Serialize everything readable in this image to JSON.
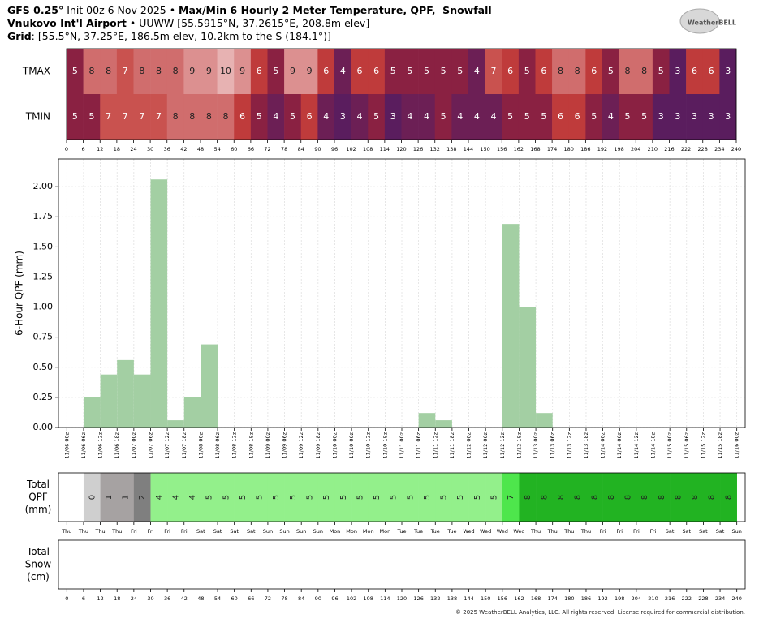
{
  "header": {
    "line1": [
      {
        "text": "GFS 0.25°",
        "bold": true
      },
      {
        "text": " Init 00z 6 Nov 2025 • ",
        "bold": false
      },
      {
        "text": "Max/Min 6 Hourly 2 Meter Temperature, QPF,  Snowfall",
        "bold": true
      }
    ],
    "line2": [
      {
        "text": "Vnukovo Int'l Airport",
        "bold": true
      },
      {
        "text": " • UUWW [55.5915°N, 37.2615°E, 208.8m elev]",
        "bold": false
      }
    ],
    "line3": [
      {
        "text": "Grid",
        "bold": true
      },
      {
        "text": ": [55.5°N, 37.25°E, 186.5m elev, 10.2km to the S (184.1°)]",
        "bold": false
      }
    ]
  },
  "logo": "WeatherBELL",
  "footer": "© 2025 WeatherBELL Analytics, LLC. All rights reserved. License required for commercial distribution.",
  "chart_data": [
    {
      "type": "heatmap",
      "rows": [
        "TMAX",
        "TMIN"
      ],
      "bins": [
        0,
        6,
        12,
        18,
        24,
        30,
        36,
        42,
        48,
        54,
        60,
        66,
        72,
        78,
        84,
        90,
        96,
        102,
        108,
        114,
        120,
        126,
        132,
        138,
        144,
        150,
        156,
        162,
        168,
        174,
        180,
        186,
        192,
        198,
        204,
        210,
        216,
        222,
        228,
        234,
        240
      ],
      "values": [
        [
          5,
          8,
          8,
          7,
          8,
          8,
          8,
          9,
          9,
          10,
          9,
          6,
          5,
          9,
          9,
          6,
          4,
          6,
          6,
          5,
          5,
          5,
          5,
          5,
          4,
          7,
          6,
          5,
          6,
          8,
          8,
          6,
          5,
          8,
          8,
          5,
          3,
          6,
          6,
          3
        ],
        [
          5,
          5,
          7,
          7,
          7,
          7,
          8,
          8,
          8,
          8,
          6,
          5,
          4,
          5,
          6,
          4,
          3,
          4,
          5,
          3,
          4,
          4,
          5,
          4,
          4,
          4,
          5,
          5,
          5,
          6,
          6,
          5,
          4,
          5,
          5,
          3,
          3,
          3,
          3,
          3
        ]
      ],
      "xlim": [
        0,
        240
      ],
      "xticks": [
        0,
        6,
        12,
        18,
        24,
        30,
        36,
        42,
        48,
        54,
        60,
        66,
        72,
        78,
        84,
        90,
        96,
        102,
        108,
        114,
        120,
        126,
        132,
        138,
        144,
        150,
        156,
        162,
        168,
        174,
        180,
        186,
        192,
        198,
        204,
        210,
        216,
        222,
        228,
        234,
        240
      ]
    },
    {
      "type": "histogram",
      "ylabel": "6-Hour QPF (mm)",
      "color": "#a3cfa3",
      "bins": [
        0,
        6,
        12,
        18,
        24,
        30,
        36,
        42,
        48,
        54,
        60,
        66,
        72,
        78,
        84,
        90,
        96,
        102,
        108,
        114,
        120,
        126,
        132,
        138,
        144,
        150,
        156,
        162,
        168,
        174,
        180,
        186,
        192,
        198,
        204,
        210,
        216,
        222,
        228,
        234,
        240
      ],
      "values": [
        0,
        0.25,
        0.44,
        0.56,
        0.44,
        2.06,
        0.06,
        0.25,
        0.69,
        0,
        0,
        0,
        0,
        0,
        0,
        0,
        0,
        0,
        0,
        0,
        0,
        0.12,
        0.06,
        0,
        0,
        0,
        1.69,
        1.0,
        0.12,
        0,
        0,
        0,
        0,
        0,
        0,
        0,
        0,
        0,
        0,
        0
      ],
      "xlim": [
        -3,
        243
      ],
      "ylim": [
        0,
        2.23
      ],
      "grid": true,
      "yticks": [
        {
          "value": 0,
          "label": "0.00"
        },
        {
          "value": 0.25,
          "label": "0.25"
        },
        {
          "value": 0.5,
          "label": "0.50"
        },
        {
          "value": 0.75,
          "label": "0.75"
        },
        {
          "value": 1,
          "label": "1.00"
        },
        {
          "value": 1.25,
          "label": "1.25"
        },
        {
          "value": 1.5,
          "label": "1.50"
        },
        {
          "value": 1.75,
          "label": "1.75"
        },
        {
          "value": 2,
          "label": "2.00"
        }
      ],
      "xticks": [
        {
          "value": 0,
          "label": "11/06 00z"
        },
        {
          "value": 6,
          "label": "11/06 06z"
        },
        {
          "value": 12,
          "label": "11/06 12z"
        },
        {
          "value": 18,
          "label": "11/06 18z"
        },
        {
          "value": 24,
          "label": "11/07 00z"
        },
        {
          "value": 30,
          "label": "11/07 06z"
        },
        {
          "value": 36,
          "label": "11/07 12z"
        },
        {
          "value": 42,
          "label": "11/07 18z"
        },
        {
          "value": 48,
          "label": "11/08 00z"
        },
        {
          "value": 54,
          "label": "11/08 06z"
        },
        {
          "value": 60,
          "label": "11/08 12z"
        },
        {
          "value": 66,
          "label": "11/08 18z"
        },
        {
          "value": 72,
          "label": "11/09 00z"
        },
        {
          "value": 78,
          "label": "11/09 06z"
        },
        {
          "value": 84,
          "label": "11/09 12z"
        },
        {
          "value": 90,
          "label": "11/09 18z"
        },
        {
          "value": 96,
          "label": "11/10 00z"
        },
        {
          "value": 102,
          "label": "11/10 06z"
        },
        {
          "value": 108,
          "label": "11/10 12z"
        },
        {
          "value": 114,
          "label": "11/10 18z"
        },
        {
          "value": 120,
          "label": "11/11 00z"
        },
        {
          "value": 126,
          "label": "11/11 06z"
        },
        {
          "value": 132,
          "label": "11/11 12z"
        },
        {
          "value": 138,
          "label": "11/11 18z"
        },
        {
          "value": 144,
          "label": "11/12 00z"
        },
        {
          "value": 150,
          "label": "11/12 06z"
        },
        {
          "value": 156,
          "label": "11/12 12z"
        },
        {
          "value": 162,
          "label": "11/12 18z"
        },
        {
          "value": 168,
          "label": "11/13 00z"
        },
        {
          "value": 174,
          "label": "11/13 06z"
        },
        {
          "value": 180,
          "label": "11/13 12z"
        },
        {
          "value": 186,
          "label": "11/13 18z"
        },
        {
          "value": 192,
          "label": "11/14 00z"
        },
        {
          "value": 198,
          "label": "11/14 06z"
        },
        {
          "value": 204,
          "label": "11/14 12z"
        },
        {
          "value": 210,
          "label": "11/14 18z"
        },
        {
          "value": 216,
          "label": "11/15 00z"
        },
        {
          "value": 222,
          "label": "11/15 06z"
        },
        {
          "value": 228,
          "label": "11/15 12z"
        },
        {
          "value": 234,
          "label": "11/15 18z"
        },
        {
          "value": 240,
          "label": "11/16 00z"
        }
      ]
    },
    {
      "type": "strip",
      "ylabel": [
        "Total",
        "QPF",
        "(mm)"
      ],
      "bins": [
        0,
        6,
        12,
        18,
        24,
        30,
        36,
        42,
        48,
        54,
        60,
        66,
        72,
        78,
        84,
        90,
        96,
        102,
        108,
        114,
        120,
        126,
        132,
        138,
        144,
        150,
        156,
        162,
        168,
        174,
        180,
        186,
        192,
        198,
        204,
        210,
        216,
        222,
        228,
        234,
        240
      ],
      "values": [
        null,
        0,
        1,
        1,
        2,
        4,
        4,
        4,
        5,
        5,
        5,
        5,
        5,
        5,
        5,
        5,
        5,
        5,
        5,
        5,
        5,
        5,
        5,
        5,
        5,
        5,
        7,
        8,
        8,
        8,
        8,
        8,
        8,
        8,
        8,
        8,
        8,
        8,
        8,
        8
      ],
      "xlim": [
        -3,
        243
      ],
      "xticks": [
        {
          "value": 0,
          "label": "Thu"
        },
        {
          "value": 6,
          "label": "Thu"
        },
        {
          "value": 12,
          "label": "Thu"
        },
        {
          "value": 18,
          "label": "Thu"
        },
        {
          "value": 24,
          "label": "Fri"
        },
        {
          "value": 30,
          "label": "Fri"
        },
        {
          "value": 36,
          "label": "Fri"
        },
        {
          "value": 42,
          "label": "Fri"
        },
        {
          "value": 48,
          "label": "Sat"
        },
        {
          "value": 54,
          "label": "Sat"
        },
        {
          "value": 60,
          "label": "Sat"
        },
        {
          "value": 66,
          "label": "Sat"
        },
        {
          "value": 72,
          "label": "Sun"
        },
        {
          "value": 78,
          "label": "Sun"
        },
        {
          "value": 84,
          "label": "Sun"
        },
        {
          "value": 90,
          "label": "Sun"
        },
        {
          "value": 96,
          "label": "Mon"
        },
        {
          "value": 102,
          "label": "Mon"
        },
        {
          "value": 108,
          "label": "Mon"
        },
        {
          "value": 114,
          "label": "Mon"
        },
        {
          "value": 120,
          "label": "Tue"
        },
        {
          "value": 126,
          "label": "Tue"
        },
        {
          "value": 132,
          "label": "Tue"
        },
        {
          "value": 138,
          "label": "Tue"
        },
        {
          "value": 144,
          "label": "Wed"
        },
        {
          "value": 150,
          "label": "Wed"
        },
        {
          "value": 156,
          "label": "Wed"
        },
        {
          "value": 162,
          "label": "Wed"
        },
        {
          "value": 168,
          "label": "Thu"
        },
        {
          "value": 174,
          "label": "Thu"
        },
        {
          "value": 180,
          "label": "Thu"
        },
        {
          "value": 186,
          "label": "Thu"
        },
        {
          "value": 192,
          "label": "Fri"
        },
        {
          "value": 198,
          "label": "Fri"
        },
        {
          "value": 204,
          "label": "Fri"
        },
        {
          "value": 210,
          "label": "Fri"
        },
        {
          "value": 216,
          "label": "Sat"
        },
        {
          "value": 222,
          "label": "Sat"
        },
        {
          "value": 228,
          "label": "Sat"
        },
        {
          "value": 234,
          "label": "Sat"
        },
        {
          "value": 240,
          "label": "Sun"
        }
      ]
    },
    {
      "type": "strip",
      "ylabel": [
        "Total",
        "Snow",
        "(cm)"
      ],
      "xlim": [
        -3,
        243
      ],
      "xticks": [
        0,
        6,
        12,
        18,
        24,
        30,
        36,
        42,
        48,
        54,
        60,
        66,
        72,
        78,
        84,
        90,
        96,
        102,
        108,
        114,
        120,
        126,
        132,
        138,
        144,
        150,
        156,
        162,
        168,
        174,
        180,
        186,
        192,
        198,
        204,
        210,
        216,
        222,
        228,
        234,
        240
      ]
    }
  ]
}
